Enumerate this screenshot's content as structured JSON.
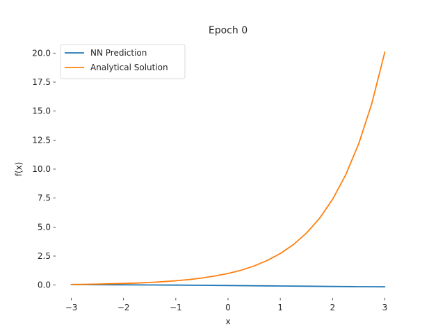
{
  "chart_data": {
    "type": "line",
    "title": "Epoch 0",
    "xlabel": "x",
    "ylabel": "f(x)",
    "xlim": [
      -3.3,
      3.3
    ],
    "ylim": [
      -1.1,
      21.1
    ],
    "xticks": [
      {
        "value": -3,
        "label": "−3"
      },
      {
        "value": -2,
        "label": "−2"
      },
      {
        "value": -1,
        "label": "−1"
      },
      {
        "value": 0,
        "label": "0"
      },
      {
        "value": 1,
        "label": "1"
      },
      {
        "value": 2,
        "label": "2"
      },
      {
        "value": 3,
        "label": "3"
      }
    ],
    "yticks": [
      {
        "value": 0,
        "label": "0.0"
      },
      {
        "value": 2.5,
        "label": "2.5"
      },
      {
        "value": 5,
        "label": "5.0"
      },
      {
        "value": 7.5,
        "label": "7.5"
      },
      {
        "value": 10,
        "label": "10.0"
      },
      {
        "value": 12.5,
        "label": "12.5"
      },
      {
        "value": 15,
        "label": "15.0"
      },
      {
        "value": 17.5,
        "label": "17.5"
      },
      {
        "value": 20,
        "label": "20.0"
      }
    ],
    "grid": false,
    "legend_position": "top-left",
    "series": [
      {
        "name": "NN Prediction",
        "color": "#1f77b4",
        "x": [
          -3.0,
          -2.5,
          -2.0,
          -1.5,
          -1.0,
          -0.5,
          0.0,
          0.5,
          1.0,
          1.5,
          2.0,
          2.5,
          3.0
        ],
        "y": [
          0.04,
          0.03,
          0.02,
          0.01,
          0.0,
          -0.02,
          -0.04,
          -0.06,
          -0.08,
          -0.1,
          -0.12,
          -0.14,
          -0.15
        ]
      },
      {
        "name": "Analytical Solution",
        "color": "#ff7f0e",
        "x": [
          -3.0,
          -2.75,
          -2.5,
          -2.25,
          -2.0,
          -1.75,
          -1.5,
          -1.25,
          -1.0,
          -0.75,
          -0.5,
          -0.25,
          0.0,
          0.25,
          0.5,
          0.75,
          1.0,
          1.25,
          1.5,
          1.75,
          2.0,
          2.25,
          2.5,
          2.75,
          3.0
        ],
        "y": [
          0.05,
          0.06,
          0.08,
          0.11,
          0.14,
          0.17,
          0.22,
          0.29,
          0.37,
          0.47,
          0.61,
          0.78,
          1.0,
          1.28,
          1.65,
          2.12,
          2.72,
          3.49,
          4.48,
          5.75,
          7.39,
          9.49,
          12.18,
          15.64,
          20.09
        ]
      }
    ]
  }
}
